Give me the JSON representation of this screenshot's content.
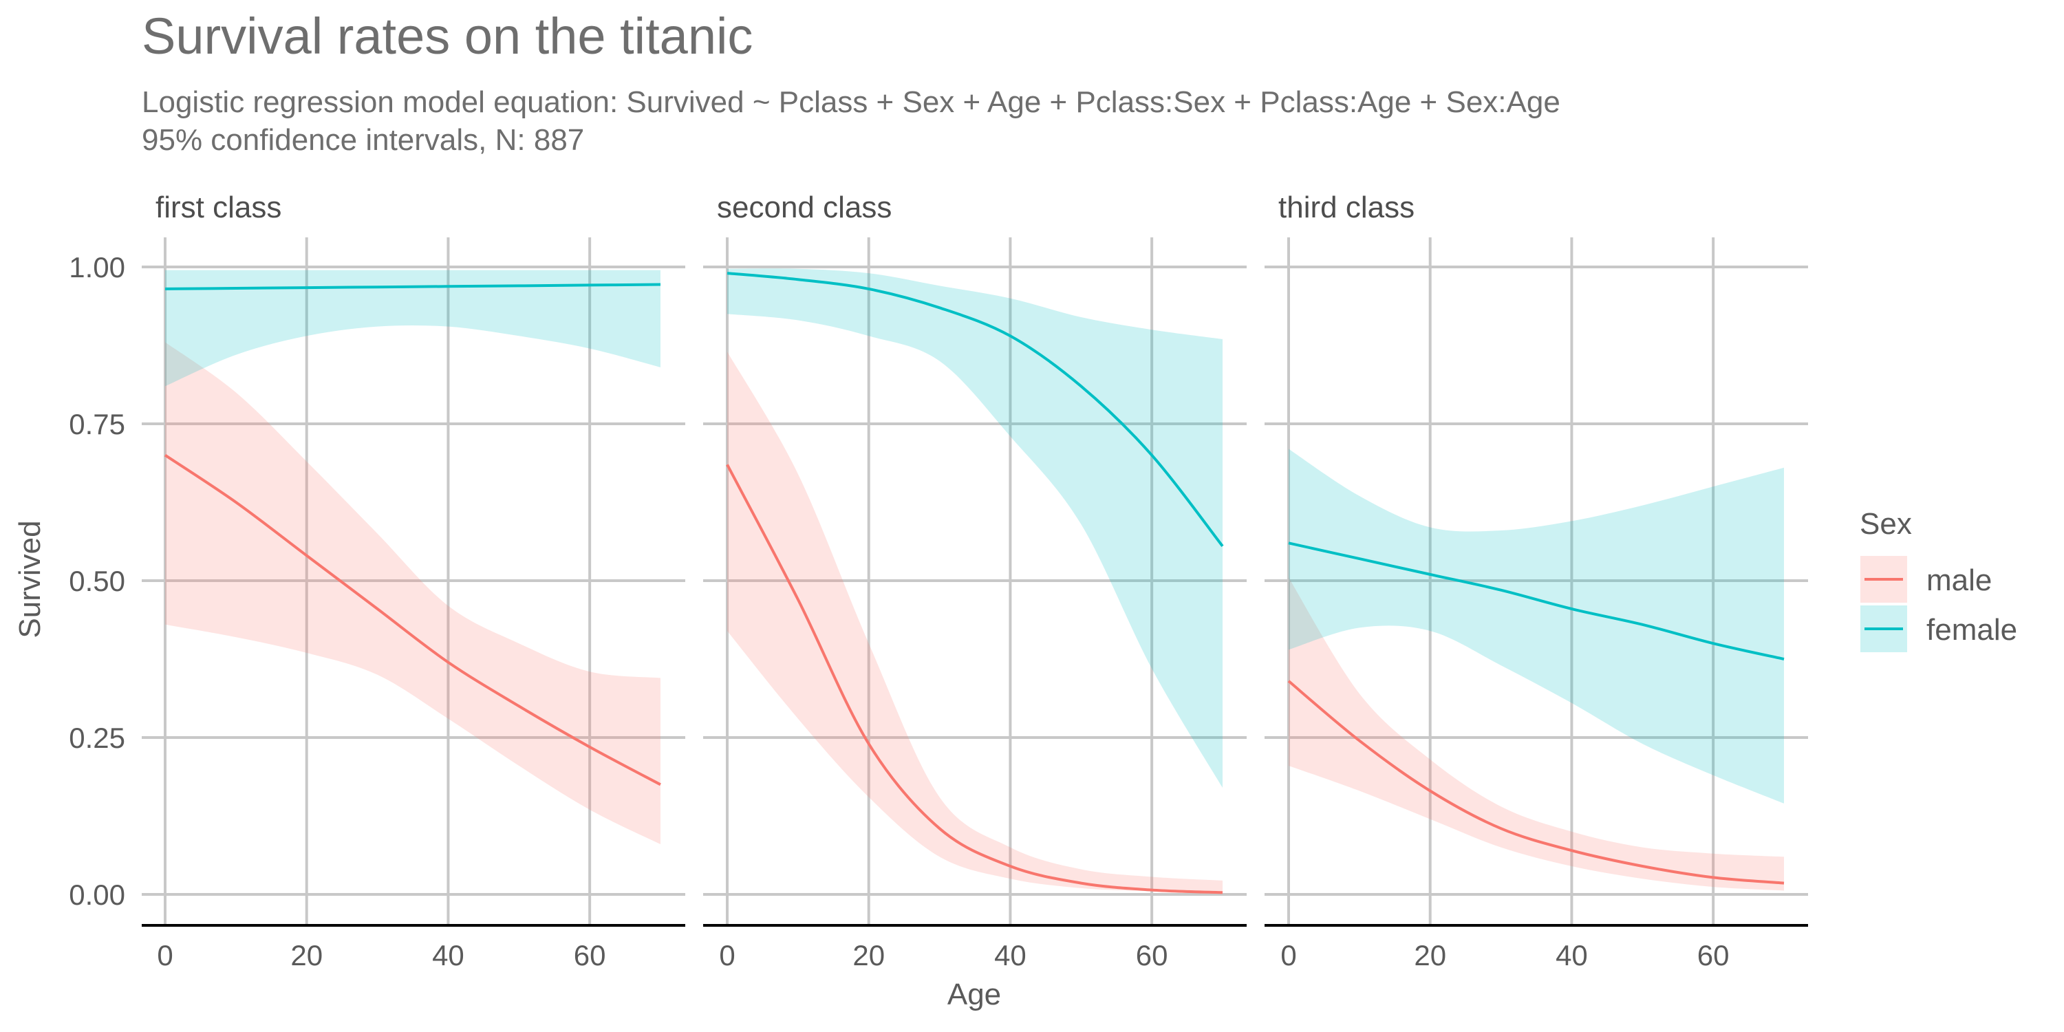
{
  "chart_data": {
    "type": "line",
    "title": "Survival rates on the titanic",
    "subtitle": [
      "Logistic regression model equation: Survived ~ Pclass + Sex + Age + Pclass:Sex + Pclass:Age + Sex:Age",
      "95% confidence intervals, N: 887"
    ],
    "xlabel": "Age",
    "ylabel": "Survived",
    "xlim": [
      0,
      70
    ],
    "ylim": [
      0,
      1
    ],
    "xticks": [
      0,
      20,
      40,
      60
    ],
    "xtick_labels": [
      "0",
      "20",
      "40",
      "60"
    ],
    "yticks": [
      0,
      0.25,
      0.5,
      0.75,
      1
    ],
    "ytick_labels": [
      "0.00",
      "0.25",
      "0.50",
      "0.75",
      "1.00"
    ],
    "grid": true,
    "legend": {
      "title": "Sex",
      "position": "right",
      "entries": [
        {
          "label": "male",
          "color": "#F8766D",
          "fill": "#F8766D"
        },
        {
          "label": "female",
          "color": "#00BFC4",
          "fill": "#00BFC4"
        }
      ]
    },
    "x": [
      0,
      10,
      20,
      30,
      40,
      50,
      60,
      70
    ],
    "facets": [
      {
        "label": "first class",
        "series": [
          {
            "name": "male",
            "values": [
              0.7,
              0.625,
              0.54,
              0.455,
              0.37,
              0.3,
              0.235,
              0.175
            ],
            "lower": [
              0.43,
              0.41,
              0.385,
              0.35,
              0.28,
              0.205,
              0.135,
              0.08
            ],
            "upper": [
              0.88,
              0.8,
              0.69,
              0.575,
              0.46,
              0.4,
              0.355,
              0.345
            ]
          },
          {
            "name": "female",
            "values": [
              0.965,
              0.966,
              0.967,
              0.968,
              0.969,
              0.97,
              0.971,
              0.972
            ],
            "lower": [
              0.81,
              0.86,
              0.89,
              0.905,
              0.905,
              0.89,
              0.87,
              0.84
            ],
            "upper": [
              0.995,
              0.995,
              0.995,
              0.995,
              0.995,
              0.995,
              0.995,
              0.995
            ]
          }
        ]
      },
      {
        "label": "second class",
        "series": [
          {
            "name": "male",
            "values": [
              0.685,
              0.47,
              0.24,
              0.105,
              0.045,
              0.018,
              0.007,
              0.003
            ],
            "lower": [
              0.42,
              0.28,
              0.155,
              0.06,
              0.025,
              0.01,
              0.005,
              0.003
            ],
            "upper": [
              0.865,
              0.67,
              0.4,
              0.155,
              0.075,
              0.04,
              0.028,
              0.022
            ]
          },
          {
            "name": "female",
            "values": [
              0.99,
              0.98,
              0.965,
              0.935,
              0.89,
              0.81,
              0.7,
              0.555
            ],
            "lower": [
              0.925,
              0.915,
              0.89,
              0.85,
              0.73,
              0.59,
              0.36,
              0.17
            ],
            "upper": [
              0.997,
              0.997,
              0.99,
              0.97,
              0.95,
              0.92,
              0.9,
              0.885
            ]
          }
        ]
      },
      {
        "label": "third class",
        "series": [
          {
            "name": "male",
            "values": [
              0.34,
              0.245,
              0.165,
              0.105,
              0.07,
              0.045,
              0.027,
              0.018
            ],
            "lower": [
              0.205,
              0.165,
              0.12,
              0.075,
              0.045,
              0.025,
              0.012,
              0.006
            ],
            "upper": [
              0.505,
              0.32,
              0.215,
              0.14,
              0.1,
              0.075,
              0.065,
              0.06
            ]
          },
          {
            "name": "female",
            "values": [
              0.56,
              0.535,
              0.51,
              0.485,
              0.455,
              0.43,
              0.4,
              0.375
            ],
            "lower": [
              0.39,
              0.425,
              0.42,
              0.365,
              0.305,
              0.24,
              0.19,
              0.145
            ],
            "upper": [
              0.71,
              0.635,
              0.585,
              0.58,
              0.595,
              0.62,
              0.65,
              0.68
            ]
          }
        ]
      }
    ]
  }
}
